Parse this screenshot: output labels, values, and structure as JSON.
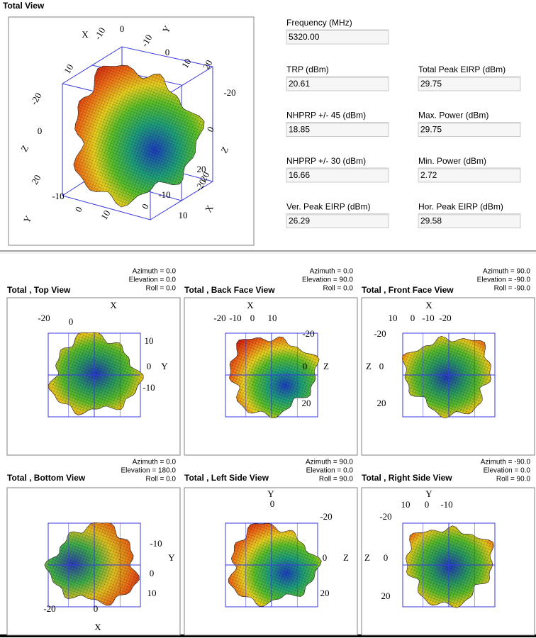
{
  "total_view": {
    "title": "Total View",
    "axis_labels": [
      "X",
      "10",
      "-10",
      "0",
      "Y",
      "-10",
      "0",
      "10",
      "20",
      "-20",
      "-20",
      "Z",
      "0",
      "Z",
      "0",
      "20",
      "20",
      "Y",
      "-10",
      "0",
      "10",
      "-10",
      "0",
      "X",
      "10",
      "20",
      "-20"
    ]
  },
  "fields": [
    {
      "label": "Frequency (MHz)",
      "value": "5320.00"
    },
    {
      "label": "TRP (dBm)",
      "value": "20.61"
    },
    {
      "label": "Total Peak EIRP (dBm)",
      "value": "29.75"
    },
    {
      "label": "NHPRP +/- 45 (dBm)",
      "value": "18.85"
    },
    {
      "label": "Max. Power (dBm)",
      "value": "29.75"
    },
    {
      "label": "NHPRP +/- 30 (dBm)",
      "value": "16.66"
    },
    {
      "label": "Min. Power (dBm)",
      "value": "2.72"
    },
    {
      "label": "Ver. Peak EIRP (dBm)",
      "value": "26.29"
    },
    {
      "label": "Hor. Peak EIRP (dBm)",
      "value": "29.58"
    }
  ],
  "views": [
    {
      "title": "Total , Top View",
      "azimuth": "Azimuth = 0.0",
      "elevation": "Elevation = 0.0",
      "roll": "Roll = 0.0",
      "axis_labels": [
        "X",
        "-20",
        "0",
        "10",
        "0",
        "-10",
        "Y"
      ]
    },
    {
      "title": "Total , Back Face View",
      "azimuth": "Azimuth = 0.0",
      "elevation": "Elevation = 90.0",
      "roll": "Roll = 0.0",
      "axis_labels": [
        "X",
        "-20",
        "-10",
        "0",
        "10",
        "-20",
        "0",
        "20",
        "Z"
      ]
    },
    {
      "title": "Total , Front Face View",
      "azimuth": "Azimuth = 90.0",
      "elevation": "Elevation = -90.0",
      "roll": "Roll = -90.0",
      "axis_labels": [
        "X",
        "10",
        "0",
        "-10",
        "-20",
        "-20",
        "0",
        "20",
        "Z"
      ]
    },
    {
      "title": "Total , Bottom View",
      "azimuth": "Azimuth = 0.0",
      "elevation": "Elevation = 180.0",
      "roll": "Roll = 0.0",
      "axis_labels": [
        "-10",
        "0",
        "10",
        "Y",
        "-20",
        "0",
        "X"
      ]
    },
    {
      "title": "Total , Left Side View",
      "azimuth": "Azimuth = 90.0",
      "elevation": "Elevation = 0.0",
      "roll": "Roll = 90.0",
      "axis_labels": [
        "Y",
        "0",
        "-20",
        "0",
        "20",
        "Z"
      ]
    },
    {
      "title": "Total , Right Side View",
      "azimuth": "Azimuth = -90.0",
      "elevation": "Elevation = 0.0",
      "roll": "Roll = 90.0",
      "axis_labels": [
        "Y",
        "10",
        "0",
        "-10",
        "-20",
        "0",
        "20",
        "Z"
      ]
    }
  ]
}
